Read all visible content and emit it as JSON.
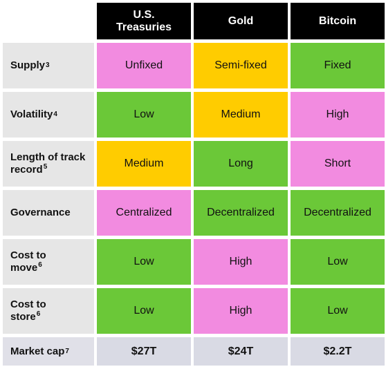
{
  "table": {
    "columns": [
      {
        "label": "U.S. Treasuries"
      },
      {
        "label": "Gold"
      },
      {
        "label": "Bitcoin"
      }
    ],
    "rows": [
      {
        "label": "Supply",
        "footnote": "3",
        "cells": [
          {
            "value": "Unfixed",
            "color": "#f28be0"
          },
          {
            "value": "Semi-fixed",
            "color": "#ffcc00"
          },
          {
            "value": "Fixed",
            "color": "#6bc838"
          }
        ]
      },
      {
        "label": "Volatility",
        "footnote": "4",
        "cells": [
          {
            "value": "Low",
            "color": "#6bc838"
          },
          {
            "value": "Medium",
            "color": "#ffcc00"
          },
          {
            "value": "High",
            "color": "#f28be0"
          }
        ]
      },
      {
        "label": "Length of track record",
        "footnote": "5",
        "cells": [
          {
            "value": "Medium",
            "color": "#ffcc00"
          },
          {
            "value": "Long",
            "color": "#6bc838"
          },
          {
            "value": "Short",
            "color": "#f28be0"
          }
        ]
      },
      {
        "label": "Governance",
        "footnote": "",
        "cells": [
          {
            "value": "Centralized",
            "color": "#f28be0"
          },
          {
            "value": "Decentralized",
            "color": "#6bc838"
          },
          {
            "value": "Decentralized",
            "color": "#6bc838"
          }
        ]
      },
      {
        "label": "Cost to move",
        "footnote": "6",
        "cells": [
          {
            "value": "Low",
            "color": "#6bc838"
          },
          {
            "value": "High",
            "color": "#f28be0"
          },
          {
            "value": "Low",
            "color": "#6bc838"
          }
        ]
      },
      {
        "label": "Cost to store",
        "footnote": "6",
        "cells": [
          {
            "value": "Low",
            "color": "#6bc838"
          },
          {
            "value": "High",
            "color": "#f28be0"
          },
          {
            "value": "Low",
            "color": "#6bc838"
          }
        ]
      },
      {
        "label": "Market cap",
        "footnote": "7",
        "cells": [
          {
            "value": "$27T",
            "color": "#d9dae4"
          },
          {
            "value": "$24T",
            "color": "#d9dae4"
          },
          {
            "value": "$2.2T",
            "color": "#d9dae4"
          }
        ]
      }
    ]
  }
}
